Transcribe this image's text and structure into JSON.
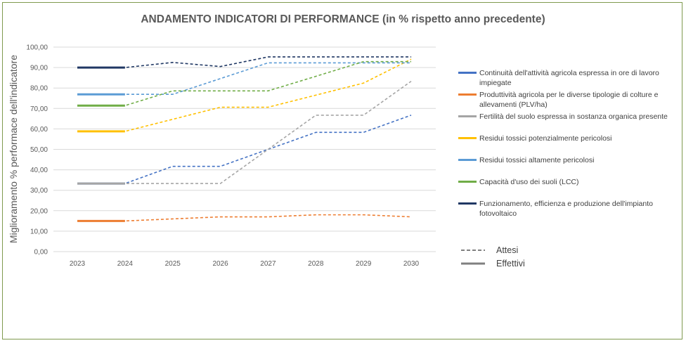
{
  "chart_data": {
    "type": "line",
    "title": "ANDAMENTO INDICATORI DI PERFORMANCE (in % rispetto anno precedente)",
    "ylabel": "Miglioramento % performace dell'indicatore",
    "xlabel": "",
    "ylim": [
      0,
      100
    ],
    "y_ticks": [
      "0,00",
      "10,00",
      "20,00",
      "30,00",
      "40,00",
      "50,00",
      "60,00",
      "70,00",
      "80,00",
      "90,00",
      "100,00"
    ],
    "categories": [
      "2023",
      "2024",
      "2025",
      "2026",
      "2027",
      "2028",
      "2029",
      "2030"
    ],
    "grid": true,
    "legend_position": "right",
    "series": [
      {
        "name": "Continuità dell'attività agricola espressa in ore di lavoro impiegate",
        "color": "#4472c4",
        "effettivi": [
          33.3,
          33.3
        ],
        "attesi": [
          33.3,
          33.3,
          41.7,
          41.7,
          50,
          58.3,
          58.3,
          66.7
        ]
      },
      {
        "name": "Produttività agricola per le diverse tipologie di colture e allevamenti (PLV/ha)",
        "color": "#ed7d31",
        "effettivi": [
          15,
          15
        ],
        "attesi": [
          15,
          15,
          16,
          17,
          17,
          18,
          18,
          17
        ]
      },
      {
        "name": "Fertilità del suolo espressa in sostanza organica presente",
        "color": "#a5a5a5",
        "effettivi": [
          33.3,
          33.3
        ],
        "attesi": [
          33.3,
          33.3,
          33.3,
          33.3,
          50,
          66.7,
          66.7,
          83.3
        ]
      },
      {
        "name": "Residui tossici potenzialmente pericolosi",
        "color": "#ffc000",
        "effettivi": [
          58.8,
          58.8
        ],
        "attesi": [
          58.8,
          58.8,
          64.7,
          70.6,
          70.6,
          76.5,
          82.4,
          94.1
        ]
      },
      {
        "name": "Residui tossici altamente pericolosi",
        "color": "#5b9bd5",
        "effettivi": [
          76.9,
          76.9
        ],
        "attesi": [
          76.9,
          76.9,
          76.9,
          84.6,
          92.3,
          92.3,
          92.3,
          92.3
        ]
      },
      {
        "name": "Capacità d'uso dei suoli (LCC)",
        "color": "#70ad47",
        "effettivi": [
          71.4,
          71.4
        ],
        "attesi": [
          71.4,
          71.4,
          78.6,
          78.6,
          78.6,
          85.7,
          92.9,
          92.9
        ]
      },
      {
        "name": "Funzionamento, efficienza e produzione dell'impianto fotovoltaico",
        "color": "#203864",
        "effettivi": [
          90,
          90
        ],
        "attesi": [
          90,
          90,
          92.5,
          90.5,
          95.2,
          95.2,
          95.2,
          95.2
        ]
      }
    ],
    "line_style_legend": {
      "dashed": "Attesi",
      "solid": "Effettivi",
      "color": "#808080"
    }
  }
}
